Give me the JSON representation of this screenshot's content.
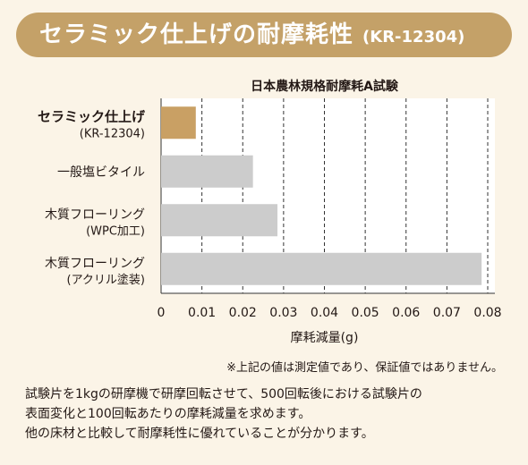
{
  "banner": {
    "title": "セラミック仕上げの耐摩耗性",
    "code": "(KR-12304)"
  },
  "colors": {
    "banner": "#c4a168",
    "highlight_bar": "#c9a064",
    "bar": "#cccccc"
  },
  "chart_data": {
    "type": "bar",
    "orientation": "horizontal",
    "title": "日本農林規格耐摩耗A試験",
    "xlabel": "摩耗減量(g)",
    "ylabel": "",
    "xlim": [
      0,
      0.08
    ],
    "xticks": [
      "0",
      "0.01",
      "0.02",
      "0.03",
      "0.04",
      "0.05",
      "0.06",
      "0.07",
      "0.08"
    ],
    "grid": "vertical-dashed",
    "categories": [
      {
        "line1": "セラミック仕上げ",
        "line2": "(KR-12304)",
        "highlight": true
      },
      {
        "line1": "一般塩ビタイル",
        "line2": "",
        "highlight": false
      },
      {
        "line1": "木質フローリング",
        "line2": "(WPC加工)",
        "highlight": false
      },
      {
        "line1": "木質フローリング",
        "line2": "(アクリル塗装)",
        "highlight": false
      }
    ],
    "values": [
      0.0085,
      0.0225,
      0.0285,
      0.0785
    ]
  },
  "note": "※上記の値は測定値であり、保証値ではありません。",
  "description": [
    "試験片を1kgの研摩機で研摩回転させて、500回転後における試験片の",
    "表面変化と100回転あたりの摩耗減量を求めます。",
    "他の床材と比較して耐摩耗性に優れていることが分かります。"
  ]
}
